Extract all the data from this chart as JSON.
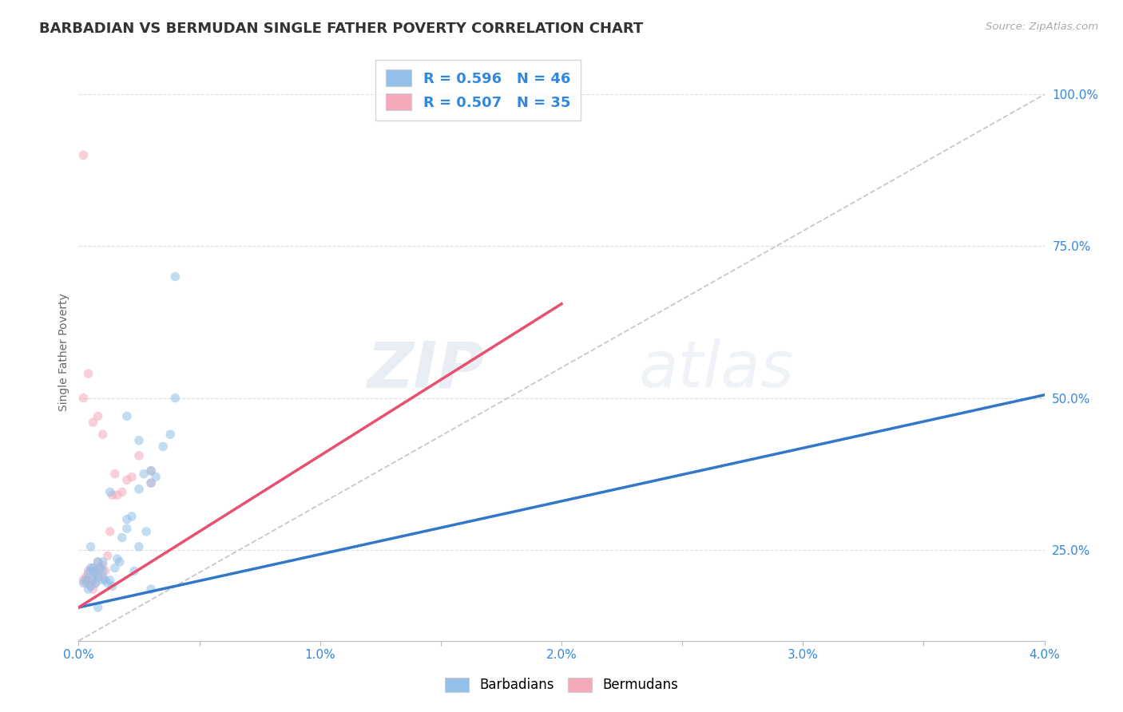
{
  "title": "BARBADIAN VS BERMUDAN SINGLE FATHER POVERTY CORRELATION CHART",
  "source": "Source: ZipAtlas.com",
  "ylabel": "Single Father Poverty",
  "xlim": [
    0.0,
    0.04
  ],
  "ylim": [
    0.1,
    1.05
  ],
  "xticks": [
    0.0,
    0.005,
    0.01,
    0.015,
    0.02,
    0.025,
    0.03,
    0.035,
    0.04
  ],
  "xticklabels": [
    "0.0%",
    "",
    "1.0%",
    "",
    "2.0%",
    "",
    "3.0%",
    "",
    "4.0%"
  ],
  "yticks": [
    0.25,
    0.5,
    0.75,
    1.0
  ],
  "yticklabels": [
    "25.0%",
    "50.0%",
    "75.0%",
    "100.0%"
  ],
  "blue_color": "#92C0E8",
  "pink_color": "#F5AABB",
  "blue_line_color": "#3378C8",
  "pink_line_color": "#E85070",
  "barbadians_label": "Barbadians",
  "bermudans_label": "Bermudans",
  "R_barbadian": "0.596",
  "N_barbadian": "46",
  "R_bermudan": "0.507",
  "N_bermudan": "35",
  "blue_points_x": [
    0.0002,
    0.0003,
    0.0004,
    0.0004,
    0.0005,
    0.0005,
    0.0006,
    0.0006,
    0.0006,
    0.0007,
    0.0007,
    0.0008,
    0.0008,
    0.0009,
    0.001,
    0.001,
    0.001,
    0.0011,
    0.0012,
    0.0013,
    0.0014,
    0.0015,
    0.0016,
    0.0017,
    0.0018,
    0.002,
    0.002,
    0.0022,
    0.0023,
    0.0025,
    0.0025,
    0.0027,
    0.003,
    0.003,
    0.0032,
    0.0035,
    0.0038,
    0.004,
    0.004,
    0.0005,
    0.0008,
    0.0013,
    0.002,
    0.0025,
    0.003,
    0.0028
  ],
  "blue_points_y": [
    0.195,
    0.2,
    0.21,
    0.185,
    0.22,
    0.19,
    0.215,
    0.2,
    0.22,
    0.195,
    0.21,
    0.205,
    0.23,
    0.22,
    0.215,
    0.2,
    0.23,
    0.2,
    0.195,
    0.2,
    0.19,
    0.22,
    0.235,
    0.23,
    0.27,
    0.285,
    0.3,
    0.305,
    0.215,
    0.255,
    0.35,
    0.375,
    0.36,
    0.185,
    0.37,
    0.42,
    0.44,
    0.5,
    0.7,
    0.255,
    0.155,
    0.345,
    0.47,
    0.43,
    0.38,
    0.28
  ],
  "pink_points_x": [
    0.0002,
    0.0003,
    0.0003,
    0.0004,
    0.0004,
    0.0005,
    0.0005,
    0.0006,
    0.0006,
    0.0006,
    0.0007,
    0.0007,
    0.0008,
    0.0008,
    0.0009,
    0.001,
    0.001,
    0.0011,
    0.0012,
    0.0013,
    0.0014,
    0.0015,
    0.0016,
    0.0018,
    0.002,
    0.0022,
    0.0025,
    0.003,
    0.003,
    0.0002,
    0.0004,
    0.0006,
    0.0008,
    0.001,
    0.0002
  ],
  "pink_points_y": [
    0.2,
    0.205,
    0.195,
    0.215,
    0.2,
    0.215,
    0.19,
    0.185,
    0.22,
    0.2,
    0.215,
    0.195,
    0.21,
    0.23,
    0.22,
    0.225,
    0.205,
    0.215,
    0.24,
    0.28,
    0.34,
    0.375,
    0.34,
    0.345,
    0.365,
    0.37,
    0.405,
    0.38,
    0.36,
    0.5,
    0.54,
    0.46,
    0.47,
    0.44,
    0.9
  ],
  "blue_trend_x": [
    0.0,
    0.04
  ],
  "blue_trend_y": [
    0.155,
    0.505
  ],
  "pink_trend_x": [
    0.0,
    0.02
  ],
  "pink_trend_y": [
    0.155,
    0.655
  ],
  "ref_line_x": [
    0.0,
    0.04
  ],
  "ref_line_y": [
    0.1,
    1.0
  ],
  "watermark_zip": "ZIP",
  "watermark_atlas": "atlas",
  "background_color": "#FFFFFF",
  "grid_color": "#DDDDDD",
  "title_fontsize": 13,
  "axis_label_fontsize": 10,
  "tick_fontsize": 11,
  "legend_fontsize": 13,
  "marker_size": 70,
  "marker_alpha": 0.55
}
